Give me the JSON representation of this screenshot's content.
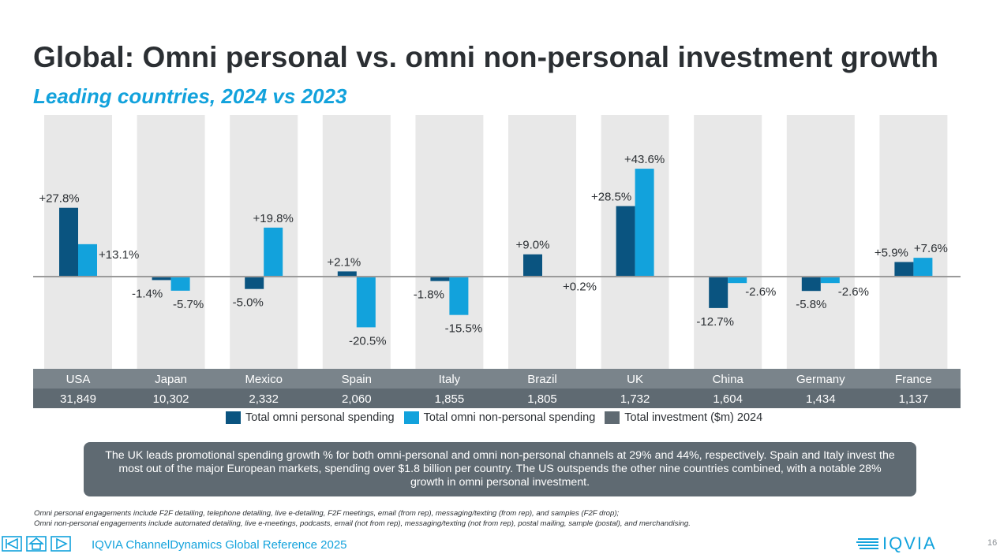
{
  "header": {
    "title": "Global: Omni personal vs. omni non-personal investment growth",
    "subtitle": "Leading countries, 2024 vs 2023"
  },
  "chart_data": {
    "type": "bar",
    "categories": [
      "USA",
      "Japan",
      "Mexico",
      "Spain",
      "Italy",
      "Brazil",
      "UK",
      "China",
      "Germany",
      "France"
    ],
    "series": [
      {
        "name": "Total omni personal spending",
        "values": [
          27.8,
          -1.4,
          -5.0,
          2.1,
          -1.8,
          9.0,
          28.5,
          -12.7,
          -5.8,
          5.9
        ],
        "labels": [
          "+27.8%",
          "-1.4%",
          "-5.0%",
          "+2.1%",
          "-1.8%",
          "+9.0%",
          "+28.5%",
          "-12.7%",
          "-5.8%",
          "+5.9%"
        ],
        "color": "#0a5480"
      },
      {
        "name": "Total omni non-personal spending",
        "values": [
          13.1,
          -5.7,
          19.8,
          -20.5,
          -15.5,
          0.2,
          43.6,
          -2.6,
          -2.6,
          7.6
        ],
        "labels": [
          "+13.1%",
          "-5.7%",
          "+19.8%",
          "-20.5%",
          "-15.5%",
          "+0.2%",
          "+43.6%",
          "-2.6%",
          "-2.6%",
          "+7.6%"
        ],
        "color": "#12a2dc"
      }
    ],
    "total_investment": {
      "name": "Total investment  ($m) 2024",
      "values": [
        "31,849",
        "10,302",
        "2,332",
        "2,060",
        "1,855",
        "1,805",
        "1,732",
        "1,604",
        "1,434",
        "1,137"
      ],
      "color": "#5f6a72"
    },
    "ylim": [
      -29.5,
      52.5
    ],
    "legend": "bottom"
  },
  "legend": {
    "items": [
      {
        "label": "Total omni personal spending",
        "color": "#0a5480"
      },
      {
        "label": "Total omni non-personal spending",
        "color": "#12a2dc"
      },
      {
        "label": "Total investment  ($m) 2024",
        "color": "#5f6a72"
      }
    ]
  },
  "callout": {
    "text": "The UK leads promotional spending growth % for both omni-personal and omni non-personal channels at 29% and 44%, respectively. Spain and Italy invest the most out of the major European markets, spending  over $1.8 billion per country. The US outspends the other nine countries combined, with a notable 28% growth in omni personal investment."
  },
  "footnotes": {
    "line1": "Omni personal engagements include F2F detailing, telephone detailing, live e-detailing, F2F meetings, email (from rep), messaging/texting (from rep), and samples (F2F drop);",
    "line2": "Omni non-personal engagements include automated detailing, live e-meetings, podcasts, email (not from rep), messaging/texting (not from rep), postal mailing, sample (postal), and merchandising."
  },
  "footer": {
    "reference": "IQVIA ChannelDynamics Global Reference 2025",
    "logo_text": "IQVIA",
    "page_number": "16",
    "nav_icons": [
      "first-page-icon",
      "home-icon",
      "next-page-icon"
    ]
  },
  "colors": {
    "accent": "#12a2dc",
    "dark_blue": "#0a5480",
    "panel_gray": "#e8e8e8",
    "band_gray": "#5f6a72"
  }
}
